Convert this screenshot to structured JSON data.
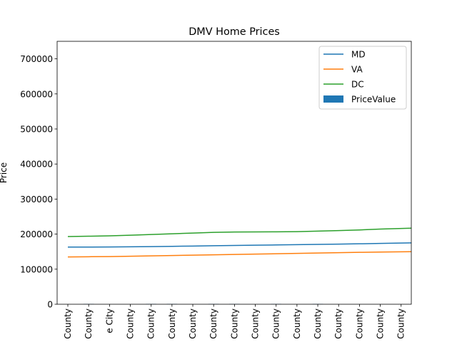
{
  "chart_data": {
    "type": "line",
    "title": "DMV Home Prices",
    "xlabel": "",
    "ylabel": "Price",
    "ylim": [
      0,
      750000
    ],
    "yticks": [
      0,
      100000,
      200000,
      300000,
      400000,
      500000,
      600000,
      700000
    ],
    "ytick_labels": [
      "0",
      "100000",
      "200000",
      "300000",
      "400000",
      "500000",
      "600000",
      "700000"
    ],
    "categories": [
      "County",
      "County",
      "e City",
      "County",
      "County",
      "County",
      "County",
      "County",
      "County",
      "County",
      "County",
      "County",
      "County",
      "County",
      "County",
      "County",
      "County"
    ],
    "legend_position": "upper right",
    "series": [
      {
        "name": "MD",
        "type": "line",
        "color": "#1f77b4",
        "values": [
          163000,
          163000,
          163300,
          163800,
          164500,
          165200,
          166000,
          166800,
          167600,
          168400,
          169200,
          170000,
          170800,
          171600,
          172400,
          173500,
          175000
        ]
      },
      {
        "name": "VA",
        "type": "line",
        "color": "#ff7f0e",
        "values": [
          135000,
          135500,
          136000,
          137000,
          138000,
          139000,
          140000,
          141000,
          142000,
          143000,
          144000,
          145000,
          146000,
          147000,
          148000,
          149000,
          150000
        ]
      },
      {
        "name": "DC",
        "type": "line",
        "color": "#2ca02c",
        "values": [
          193000,
          194000,
          195000,
          197000,
          199000,
          201000,
          203000,
          205000,
          206000,
          206200,
          206500,
          207000,
          208500,
          210000,
          212000,
          214500,
          217000
        ]
      },
      {
        "name": "PriceValue",
        "type": "bar",
        "color": "#1f77b4",
        "values": [
          0,
          800,
          0,
          0,
          800,
          800,
          0,
          800,
          800,
          0,
          800,
          0,
          800,
          0,
          0,
          0,
          0
        ]
      }
    ]
  }
}
